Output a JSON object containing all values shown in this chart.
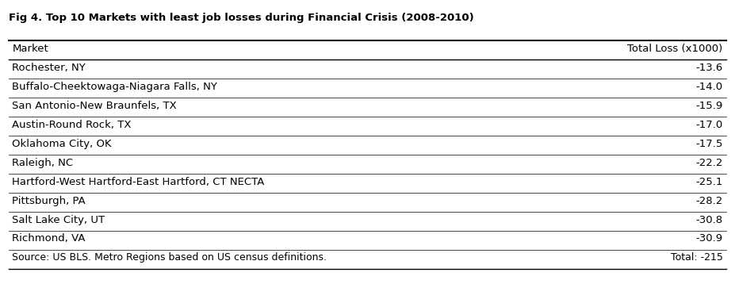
{
  "title": "Fig 4. Top 10 Markets with least job losses during Financial Crisis (2008-2010)",
  "col1_header": "Market",
  "col2_header": "Total Loss (x1000)",
  "rows": [
    [
      "Rochester, NY",
      "-13.6"
    ],
    [
      "Buffalo-Cheektowaga-Niagara Falls, NY",
      "-14.0"
    ],
    [
      "San Antonio-New Braunfels, TX",
      "-15.9"
    ],
    [
      "Austin-Round Rock, TX",
      "-17.0"
    ],
    [
      "Oklahoma City, OK",
      "-17.5"
    ],
    [
      "Raleigh, NC",
      "-22.2"
    ],
    [
      "Hartford-West Hartford-East Hartford, CT NECTA",
      "-25.1"
    ],
    [
      "Pittsburgh, PA",
      "-28.2"
    ],
    [
      "Salt Lake City, UT",
      "-30.8"
    ],
    [
      "Richmond, VA",
      "-30.9"
    ]
  ],
  "footer_left": "Source: US BLS. Metro Regions based on US census definitions.",
  "footer_right": "Total: -215",
  "bg_color": "#ffffff",
  "line_color": "#000000",
  "title_fontsize": 9.5,
  "header_fontsize": 9.5,
  "row_fontsize": 9.5,
  "footer_fontsize": 9.0
}
